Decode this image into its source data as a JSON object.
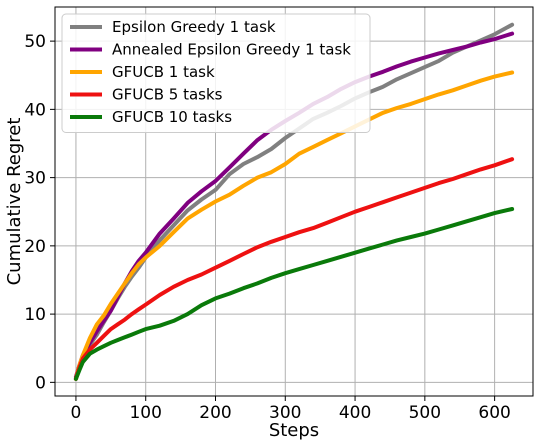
{
  "chart_data": {
    "type": "line",
    "title": "",
    "xlabel": "Steps",
    "ylabel": "Cumulative Regret",
    "xlim": [
      -30,
      655
    ],
    "ylim": [
      -2,
      55
    ],
    "xticks": [
      0,
      100,
      200,
      300,
      400,
      500,
      600
    ],
    "yticks": [
      0,
      10,
      20,
      30,
      40,
      50
    ],
    "grid": true,
    "legend_position": "top-left",
    "series": [
      {
        "name": "Epsilon Greedy 1 task",
        "color": "#808080",
        "x": [
          0,
          5,
          10,
          20,
          30,
          40,
          50,
          60,
          70,
          80,
          90,
          100,
          120,
          140,
          160,
          180,
          200,
          220,
          240,
          260,
          280,
          300,
          320,
          340,
          360,
          380,
          400,
          420,
          440,
          460,
          480,
          500,
          520,
          540,
          560,
          580,
          600,
          625
        ],
        "y": [
          0.5,
          2.0,
          3.5,
          5.5,
          7.0,
          8.8,
          10.5,
          12.3,
          14.0,
          15.5,
          16.8,
          18.3,
          20.8,
          23.0,
          25.2,
          26.8,
          28.2,
          30.5,
          32.0,
          33.0,
          34.2,
          35.8,
          37.2,
          38.6,
          39.5,
          40.5,
          41.6,
          42.5,
          43.3,
          44.4,
          45.3,
          46.2,
          47.1,
          48.3,
          49.2,
          50.1,
          51.0,
          52.4
        ]
      },
      {
        "name": "Annealed Epsilon Greedy 1 task",
        "color": "#800080",
        "x": [
          0,
          5,
          10,
          20,
          30,
          40,
          50,
          60,
          70,
          80,
          90,
          100,
          120,
          140,
          160,
          180,
          200,
          220,
          240,
          260,
          280,
          300,
          320,
          340,
          360,
          380,
          400,
          420,
          440,
          460,
          480,
          500,
          520,
          540,
          560,
          580,
          600,
          625
        ],
        "y": [
          0.8,
          2.5,
          4.0,
          5.8,
          7.5,
          9.0,
          10.5,
          12.5,
          14.5,
          16.3,
          17.8,
          19.0,
          21.8,
          24.0,
          26.3,
          28.0,
          29.5,
          31.5,
          33.5,
          35.5,
          37.0,
          38.3,
          39.5,
          40.8,
          41.8,
          43.0,
          44.0,
          44.8,
          45.5,
          46.3,
          47.0,
          47.6,
          48.2,
          48.7,
          49.2,
          49.8,
          50.3,
          51.1
        ]
      },
      {
        "name": "GFUCB 1 task",
        "color": "#FFA500",
        "x": [
          0,
          5,
          10,
          20,
          30,
          40,
          50,
          60,
          70,
          80,
          90,
          100,
          120,
          140,
          160,
          180,
          200,
          220,
          240,
          260,
          280,
          300,
          320,
          340,
          360,
          380,
          400,
          420,
          440,
          460,
          480,
          500,
          520,
          540,
          560,
          580,
          600,
          625
        ],
        "y": [
          0.5,
          2.5,
          4.0,
          6.5,
          8.5,
          9.8,
          11.5,
          13.0,
          14.5,
          16.0,
          17.3,
          18.3,
          20.0,
          22.0,
          24.0,
          25.3,
          26.5,
          27.5,
          28.8,
          30.0,
          30.8,
          32.0,
          33.5,
          34.5,
          35.5,
          36.5,
          37.5,
          38.5,
          39.5,
          40.2,
          40.8,
          41.5,
          42.2,
          42.8,
          43.5,
          44.2,
          44.8,
          45.4
        ]
      },
      {
        "name": "GFUCB 5 tasks",
        "color": "#EE1111",
        "x": [
          0,
          5,
          10,
          20,
          30,
          40,
          50,
          60,
          70,
          80,
          90,
          100,
          120,
          140,
          160,
          180,
          200,
          220,
          240,
          260,
          280,
          300,
          320,
          340,
          360,
          380,
          400,
          420,
          440,
          460,
          480,
          500,
          520,
          540,
          560,
          580,
          600,
          625
        ],
        "y": [
          0.5,
          2.2,
          3.5,
          4.8,
          5.8,
          6.8,
          7.8,
          8.5,
          9.2,
          10.0,
          10.7,
          11.4,
          12.8,
          14.0,
          15.0,
          15.8,
          16.8,
          17.8,
          18.8,
          19.8,
          20.6,
          21.3,
          22.0,
          22.6,
          23.4,
          24.2,
          25.0,
          25.7,
          26.4,
          27.1,
          27.8,
          28.5,
          29.2,
          29.8,
          30.5,
          31.2,
          31.8,
          32.7
        ]
      },
      {
        "name": "GFUCB 10 tasks",
        "color": "#0A7A0A",
        "x": [
          0,
          5,
          10,
          20,
          30,
          40,
          50,
          60,
          70,
          80,
          90,
          100,
          120,
          140,
          160,
          180,
          200,
          220,
          240,
          260,
          280,
          300,
          320,
          340,
          360,
          380,
          400,
          420,
          440,
          460,
          480,
          500,
          520,
          540,
          560,
          580,
          600,
          625
        ],
        "y": [
          0.5,
          1.8,
          3.0,
          4.2,
          4.8,
          5.3,
          5.8,
          6.2,
          6.6,
          7.0,
          7.4,
          7.8,
          8.3,
          9.0,
          10.0,
          11.3,
          12.3,
          13.0,
          13.8,
          14.5,
          15.3,
          16.0,
          16.6,
          17.2,
          17.8,
          18.4,
          19.0,
          19.6,
          20.2,
          20.8,
          21.3,
          21.8,
          22.4,
          23.0,
          23.6,
          24.2,
          24.8,
          25.4
        ]
      }
    ]
  }
}
